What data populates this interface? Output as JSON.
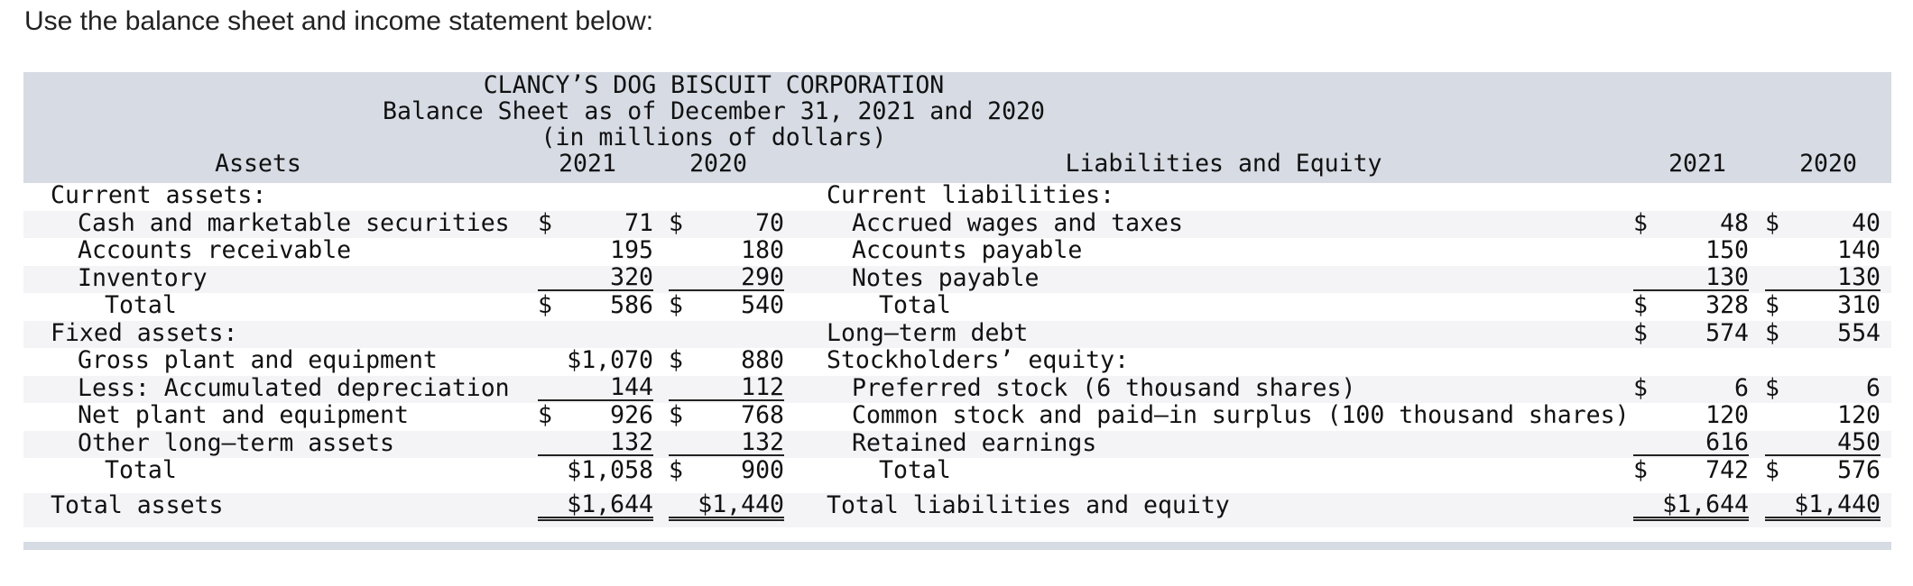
{
  "intro": "Use the balance sheet and income statement below:",
  "header": {
    "company": "CLANCY’S DOG BISCUIT CORPORATION",
    "subtitle": "Balance Sheet as of December 31, 2021 and 2020",
    "units": "(in millions of dollars)",
    "assets_label": "Assets",
    "liab_label": "Liabilities and Equity",
    "year1": "2021",
    "year2": "2020"
  },
  "assets": [
    {
      "label": "Current assets:",
      "v1": "",
      "v2": ""
    },
    {
      "label": "Cash and marketable securities",
      "v1": "71",
      "v2": "70"
    },
    {
      "label": "Accounts receivable",
      "v1": "195",
      "v2": "180"
    },
    {
      "label": "Inventory",
      "v1": "320",
      "v2": "290"
    },
    {
      "label": "Total",
      "v1": "586",
      "v2": "540"
    },
    {
      "label": "Fixed assets:",
      "v1": "",
      "v2": ""
    },
    {
      "label": "Gross plant and equipment",
      "v1": "$1,070",
      "v2": "880"
    },
    {
      "label": "Less: Accumulated depreciation",
      "v1": "144",
      "v2": "112"
    },
    {
      "label": "Net plant and equipment",
      "v1": "926",
      "v2": "768"
    },
    {
      "label": "Other long–term assets",
      "v1": "132",
      "v2": "132"
    },
    {
      "label": "Total",
      "v1": "$1,058",
      "v2": "900"
    },
    {
      "label": "Total assets",
      "v1": "$1,644",
      "v2": "$1,440"
    }
  ],
  "liabilities": [
    {
      "label": "Current liabilities:",
      "v1": "",
      "v2": ""
    },
    {
      "label": "Accrued wages and taxes",
      "v1": "48",
      "v2": "40"
    },
    {
      "label": "Accounts payable",
      "v1": "150",
      "v2": "140"
    },
    {
      "label": "Notes payable",
      "v1": "130",
      "v2": "130"
    },
    {
      "label": "Total",
      "v1": "328",
      "v2": "310"
    },
    {
      "label": "Long–term debt",
      "v1": "574",
      "v2": "554"
    },
    {
      "label": "Stockholders’ equity:",
      "v1": "",
      "v2": ""
    },
    {
      "label": "Preferred stock (6 thousand shares)",
      "v1": "6",
      "v2": "6"
    },
    {
      "label": "Common stock and paid–in surplus (100 thousand shares)",
      "v1": "120",
      "v2": "120"
    },
    {
      "label": "Retained earnings",
      "v1": "616",
      "v2": "450"
    },
    {
      "label": "Total",
      "v1": "742",
      "v2": "576"
    },
    {
      "label": "Total liabilities and equity",
      "v1": "$1,644",
      "v2": "$1,440"
    }
  ],
  "dollar_sign": "$"
}
